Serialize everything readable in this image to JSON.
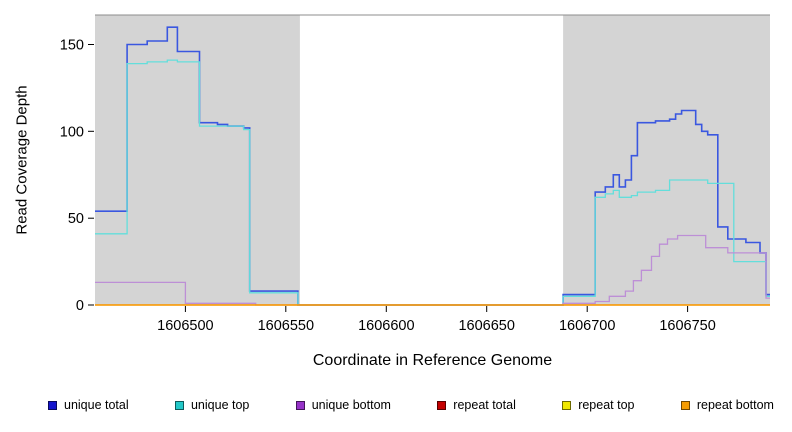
{
  "chart_data": {
    "type": "line",
    "subtype": "step-after",
    "title": "",
    "xlabel": "Coordinate in Reference Genome",
    "ylabel": "Read Coverage Depth",
    "xlim": [
      1606455,
      1606791
    ],
    "ylim": [
      0,
      167
    ],
    "xticks": [
      1606500,
      1606550,
      1606600,
      1606650,
      1606700,
      1606750
    ],
    "yticks": [
      0,
      50,
      100,
      150
    ],
    "grid": false,
    "legend_position": "bottom",
    "shaded_regions": [
      {
        "from": 1606455,
        "to": 1606557,
        "color": "#d4d4d4"
      },
      {
        "from": 1606688,
        "to": 1606791,
        "color": "#d4d4d4"
      }
    ],
    "series": [
      {
        "name": "unique total",
        "color": "#3a57e0",
        "width": 1.6,
        "points": [
          [
            1606455,
            54
          ],
          [
            1606471,
            150
          ],
          [
            1606481,
            152
          ],
          [
            1606491,
            160
          ],
          [
            1606496,
            146
          ],
          [
            1606507,
            105
          ],
          [
            1606516,
            104
          ],
          [
            1606521,
            103
          ],
          [
            1606529,
            102
          ],
          [
            1606532,
            8
          ],
          [
            1606556,
            0
          ],
          [
            1606688,
            6
          ],
          [
            1606704,
            65
          ],
          [
            1606709,
            68
          ],
          [
            1606713,
            75
          ],
          [
            1606716,
            68
          ],
          [
            1606719,
            72
          ],
          [
            1606722,
            86
          ],
          [
            1606725,
            105
          ],
          [
            1606734,
            106
          ],
          [
            1606741,
            107
          ],
          [
            1606744,
            110
          ],
          [
            1606747,
            112
          ],
          [
            1606754,
            104
          ],
          [
            1606757,
            100
          ],
          [
            1606760,
            98
          ],
          [
            1606765,
            45
          ],
          [
            1606770,
            38
          ],
          [
            1606779,
            36
          ],
          [
            1606786,
            30
          ],
          [
            1606789,
            6
          ]
        ]
      },
      {
        "name": "unique top",
        "color": "#63dedb",
        "width": 1.3,
        "points": [
          [
            1606455,
            41
          ],
          [
            1606471,
            139
          ],
          [
            1606481,
            140
          ],
          [
            1606491,
            141
          ],
          [
            1606496,
            140
          ],
          [
            1606507,
            103
          ],
          [
            1606529,
            101
          ],
          [
            1606532,
            7
          ],
          [
            1606556,
            0
          ],
          [
            1606688,
            5
          ],
          [
            1606704,
            62
          ],
          [
            1606709,
            64
          ],
          [
            1606713,
            66
          ],
          [
            1606716,
            62
          ],
          [
            1606722,
            63
          ],
          [
            1606725,
            65
          ],
          [
            1606734,
            66
          ],
          [
            1606741,
            72
          ],
          [
            1606757,
            72
          ],
          [
            1606760,
            70
          ],
          [
            1606772,
            70
          ],
          [
            1606773,
            25
          ],
          [
            1606786,
            25
          ],
          [
            1606789,
            5
          ]
        ]
      },
      {
        "name": "unique bottom",
        "color": "#bd8fd6",
        "width": 1.3,
        "points": [
          [
            1606455,
            13
          ],
          [
            1606497,
            13
          ],
          [
            1606500,
            1
          ],
          [
            1606533,
            1
          ],
          [
            1606535,
            0
          ],
          [
            1606556,
            0
          ],
          [
            1606688,
            1
          ],
          [
            1606704,
            2
          ],
          [
            1606711,
            5
          ],
          [
            1606719,
            8
          ],
          [
            1606723,
            14
          ],
          [
            1606727,
            20
          ],
          [
            1606732,
            28
          ],
          [
            1606736,
            35
          ],
          [
            1606740,
            38
          ],
          [
            1606745,
            40
          ],
          [
            1606757,
            40
          ],
          [
            1606759,
            33
          ],
          [
            1606766,
            33
          ],
          [
            1606770,
            30
          ],
          [
            1606787,
            30
          ],
          [
            1606789,
            4
          ]
        ]
      },
      {
        "name": "repeat total",
        "color": "#cc0000",
        "width": 1.3,
        "points": [
          [
            1606455,
            0
          ]
        ]
      },
      {
        "name": "repeat top",
        "color": "#f2e900",
        "width": 1.3,
        "points": [
          [
            1606455,
            0
          ]
        ]
      },
      {
        "name": "repeat bottom",
        "color": "#ff9d00",
        "width": 1.3,
        "points": [
          [
            1606455,
            0
          ]
        ]
      }
    ]
  },
  "legend": {
    "items": [
      {
        "label": "unique total",
        "color": "#1414cc"
      },
      {
        "label": "unique top",
        "color": "#22c8c8"
      },
      {
        "label": "unique bottom",
        "color": "#9632c8"
      },
      {
        "label": "repeat total",
        "color": "#c40000"
      },
      {
        "label": "repeat top",
        "color": "#f0e800"
      },
      {
        "label": "repeat bottom",
        "color": "#f59b00"
      }
    ]
  }
}
